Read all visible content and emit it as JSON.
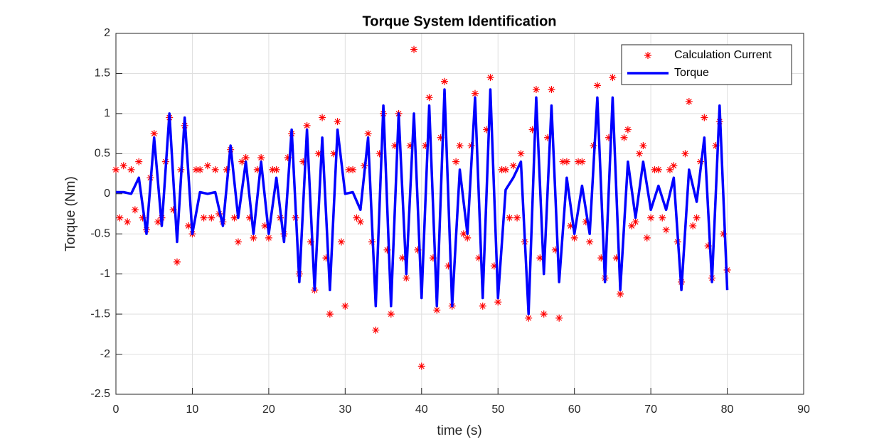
{
  "chart_data": {
    "type": "line",
    "title": "Torque System Identification",
    "xlabel": "time (s)",
    "ylabel": "Torque (Nm)",
    "xlim": [
      0,
      90
    ],
    "xticks": [
      0,
      10,
      20,
      30,
      40,
      50,
      60,
      70,
      80,
      90
    ],
    "ylim": [
      -2.5,
      2
    ],
    "yticks": [
      -2.5,
      -2,
      -1.5,
      -1,
      -0.5,
      0,
      0.5,
      1,
      1.5,
      2
    ],
    "grid": true,
    "legend": "upper-right",
    "series": [
      {
        "name": "Calculation Current",
        "type": "scatter",
        "marker": "*",
        "color": "#ff0000",
        "x": [
          0,
          0.5,
          1,
          1.5,
          2,
          2.5,
          3,
          3.5,
          4,
          4.5,
          5,
          5.5,
          6,
          6.5,
          7,
          7.5,
          8,
          8.5,
          9,
          9.5,
          10,
          10.5,
          11,
          11.5,
          12,
          12.5,
          13,
          13.5,
          14,
          14.5,
          15,
          15.5,
          16,
          16.5,
          17,
          17.5,
          18,
          18.5,
          19,
          19.5,
          20,
          20.5,
          21,
          21.5,
          22,
          22.5,
          23,
          23.5,
          24,
          24.5,
          25,
          25.5,
          26,
          26.5,
          27,
          27.5,
          28,
          28.5,
          29,
          29.5,
          30,
          30.5,
          31,
          31.5,
          32,
          32.5,
          33,
          33.5,
          34,
          34.5,
          35,
          35.5,
          36,
          36.5,
          37,
          37.5,
          38,
          38.5,
          39,
          39.5,
          40,
          40.5,
          41,
          41.5,
          42,
          42.5,
          43,
          43.5,
          44,
          44.5,
          45,
          45.5,
          46,
          46.5,
          47,
          47.5,
          48,
          48.5,
          49,
          49.5,
          50,
          50.5,
          51,
          51.5,
          52,
          52.5,
          53,
          53.5,
          54,
          54.5,
          55,
          55.5,
          56,
          56.5,
          57,
          57.5,
          58,
          58.5,
          59,
          59.5,
          60,
          60.5,
          61,
          61.5,
          62,
          62.5,
          63,
          63.5,
          64,
          64.5,
          65,
          65.5,
          66,
          66.5,
          67,
          67.5,
          68,
          68.5,
          69,
          69.5,
          70,
          70.5,
          71,
          71.5,
          72,
          72.5,
          73,
          73.5,
          74,
          74.5,
          75,
          75.5,
          76,
          76.5,
          77,
          77.5,
          78,
          78.5,
          79,
          79.5,
          80
        ],
        "values": [
          0.3,
          -0.3,
          0.35,
          -0.35,
          0.3,
          -0.2,
          0.4,
          -0.3,
          -0.45,
          0.2,
          0.75,
          -0.35,
          -0.3,
          0.4,
          0.95,
          -0.2,
          -0.85,
          0.3,
          0.85,
          -0.4,
          -0.5,
          0.3,
          0.3,
          -0.3,
          0.35,
          -0.3,
          0.3,
          -0.25,
          -0.35,
          0.3,
          0.55,
          -0.3,
          -0.6,
          0.4,
          0.45,
          -0.3,
          -0.55,
          0.3,
          0.45,
          -0.4,
          -0.55,
          0.3,
          0.3,
          -0.3,
          -0.5,
          0.45,
          0.75,
          -0.3,
          -1.0,
          0.4,
          0.85,
          -0.6,
          -1.2,
          0.5,
          0.95,
          -0.8,
          -1.5,
          0.5,
          0.9,
          -0.6,
          -1.4,
          0.3,
          0.3,
          -0.3,
          -0.35,
          0.35,
          0.75,
          -0.6,
          -1.7,
          0.5,
          1.0,
          -0.7,
          -1.5,
          0.6,
          1.0,
          -0.8,
          -1.05,
          0.6,
          1.8,
          -0.7,
          -2.15,
          0.6,
          1.2,
          -0.8,
          -1.45,
          0.7,
          1.4,
          -0.9,
          -1.4,
          0.4,
          0.6,
          -0.5,
          -0.55,
          0.6,
          1.25,
          -0.8,
          -1.4,
          0.8,
          1.45,
          -0.9,
          -1.35,
          0.3,
          0.3,
          -0.3,
          0.35,
          -0.3,
          0.5,
          -0.6,
          -1.55,
          0.8,
          1.3,
          -0.8,
          -1.5,
          0.7,
          1.3,
          -0.7,
          -1.55,
          0.4,
          0.4,
          -0.4,
          -0.55,
          0.4,
          0.4,
          -0.35,
          -0.6,
          0.6,
          1.35,
          -0.8,
          -1.05,
          0.7,
          1.45,
          -0.8,
          -1.25,
          0.7,
          0.8,
          -0.4,
          -0.35,
          0.5,
          0.6,
          -0.55,
          -0.3,
          0.3,
          0.3,
          -0.3,
          -0.45,
          0.3,
          0.35,
          -0.6,
          -1.1,
          0.5,
          1.15,
          -0.4,
          -0.3,
          0.4,
          0.95,
          -0.65,
          -1.05,
          0.6,
          0.9,
          -0.5,
          -0.95
        ]
      },
      {
        "name": "Torque",
        "type": "line",
        "color": "#0000ff",
        "x": [
          0,
          1,
          2,
          3,
          4,
          5,
          6,
          7,
          8,
          9,
          10,
          11,
          12,
          13,
          14,
          15,
          16,
          17,
          18,
          19,
          20,
          21,
          22,
          23,
          24,
          25,
          26,
          27,
          28,
          29,
          30,
          31,
          32,
          33,
          34,
          35,
          36,
          37,
          38,
          39,
          40,
          41,
          42,
          43,
          44,
          45,
          46,
          47,
          48,
          49,
          50,
          51,
          52,
          53,
          54,
          55,
          56,
          57,
          58,
          59,
          60,
          61,
          62,
          63,
          64,
          65,
          66,
          67,
          68,
          69,
          70,
          71,
          72,
          73,
          74,
          75,
          76,
          77,
          78,
          79,
          80
        ],
        "values": [
          0.02,
          0.02,
          0,
          0.2,
          -0.5,
          0.7,
          -0.4,
          1.0,
          -0.6,
          0.95,
          -0.5,
          0.02,
          0,
          0.02,
          -0.4,
          0.6,
          -0.3,
          0.4,
          -0.5,
          0.4,
          -0.5,
          0.2,
          -0.6,
          0.8,
          -1.1,
          0.8,
          -1.2,
          0.7,
          -1.2,
          0.8,
          0,
          0.02,
          -0.2,
          0.7,
          -1.4,
          1.1,
          -1.4,
          1.0,
          -1.0,
          1.0,
          -1.3,
          1.1,
          -1.4,
          1.3,
          -1.4,
          0.3,
          -0.5,
          1.2,
          -1.3,
          1.3,
          -1.3,
          0.05,
          0.2,
          0.4,
          -1.5,
          1.2,
          -1.0,
          1.1,
          -1.1,
          0.2,
          -0.5,
          0.1,
          -0.5,
          1.2,
          -1.1,
          1.2,
          -1.2,
          0.4,
          -0.3,
          0.4,
          -0.2,
          0.1,
          -0.2,
          0.2,
          -1.2,
          0.3,
          -0.1,
          0.7,
          -1.1,
          1.1,
          -1.2
        ]
      }
    ]
  }
}
